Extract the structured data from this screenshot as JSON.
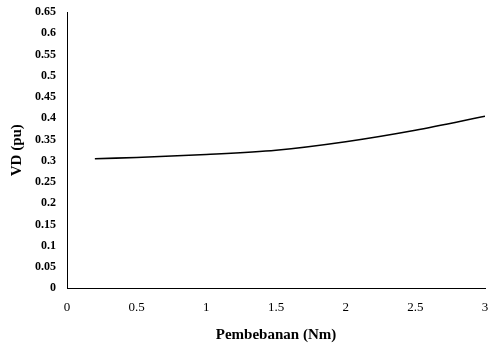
{
  "chart_data": {
    "type": "line",
    "x_label": "Pembebanan (Nm)",
    "y_label": "VD (pu)",
    "x": [
      0.2,
      0.5,
      1.0,
      1.5,
      2.0,
      2.5,
      3.0
    ],
    "values": [
      0.305,
      0.308,
      0.315,
      0.325,
      0.345,
      0.372,
      0.405
    ],
    "color": "#000000",
    "xlim": [
      0,
      3
    ],
    "xticks": [
      0,
      0.5,
      1,
      1.5,
      2,
      2.5,
      3
    ],
    "ylim": [
      0,
      0.65
    ],
    "yticks": [
      0,
      0.05,
      0.1,
      0.15,
      0.2,
      0.25,
      0.3,
      0.35,
      0.4,
      0.45,
      0.5,
      0.55,
      0.6,
      0.65
    ],
    "grid": false
  }
}
